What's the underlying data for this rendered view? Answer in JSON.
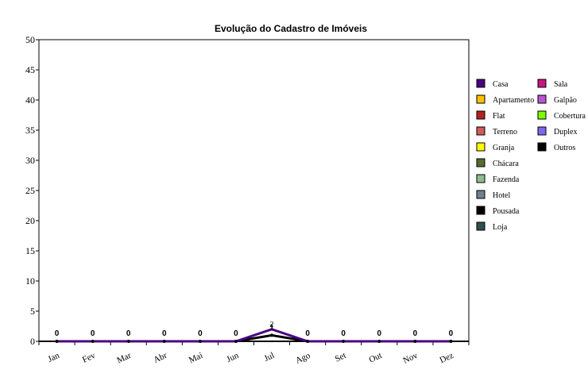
{
  "chart_data": {
    "type": "line",
    "title": "Evolução do Cadastro de Imóveis",
    "xlabel": "",
    "ylabel": "",
    "categories": [
      "Jan",
      "Fev",
      "Mar",
      "Abr",
      "Mai",
      "Jun",
      "Jul",
      "Ago",
      "Set",
      "Out",
      "Nov",
      "Dez"
    ],
    "ylim": [
      0,
      50
    ],
    "yticks": [
      0,
      5,
      10,
      15,
      20,
      25,
      30,
      35,
      40,
      45,
      50
    ],
    "grid": false,
    "legend_position": "right",
    "series": [
      {
        "name": "Casa",
        "color": "#4B0082",
        "values": [
          0,
          0,
          0,
          0,
          0,
          0,
          2,
          0,
          0,
          0,
          0,
          0
        ]
      },
      {
        "name": "Apartamento",
        "color": "#FFC000",
        "values": [
          0,
          0,
          0,
          0,
          0,
          0,
          0,
          0,
          0,
          0,
          0,
          0
        ]
      },
      {
        "name": "Flat",
        "color": "#B22222",
        "values": [
          0,
          0,
          0,
          0,
          0,
          0,
          0,
          0,
          0,
          0,
          0,
          0
        ]
      },
      {
        "name": "Terreno",
        "color": "#CD5C5C",
        "values": [
          0,
          0,
          0,
          0,
          0,
          0,
          0,
          0,
          0,
          0,
          0,
          0
        ]
      },
      {
        "name": "Granja",
        "color": "#FFFF00",
        "values": [
          0,
          0,
          0,
          0,
          0,
          0,
          0,
          0,
          0,
          0,
          0,
          0
        ]
      },
      {
        "name": "Chácara",
        "color": "#556B2F",
        "values": [
          0,
          0,
          0,
          0,
          0,
          0,
          0,
          0,
          0,
          0,
          0,
          0
        ]
      },
      {
        "name": "Fazenda",
        "color": "#8FBC8F",
        "values": [
          0,
          0,
          0,
          0,
          0,
          0,
          0,
          0,
          0,
          0,
          0,
          0
        ]
      },
      {
        "name": "Hotel",
        "color": "#708090",
        "values": [
          0,
          0,
          0,
          0,
          0,
          0,
          0,
          0,
          0,
          0,
          0,
          0
        ]
      },
      {
        "name": "Pousada",
        "color": "#000000",
        "values": [
          0,
          0,
          0,
          0,
          0,
          0,
          1,
          0,
          0,
          0,
          0,
          0
        ]
      },
      {
        "name": "Loja",
        "color": "#2F4F4F",
        "values": [
          0,
          0,
          0,
          0,
          0,
          0,
          0,
          0,
          0,
          0,
          0,
          0
        ]
      },
      {
        "name": "Sala",
        "color": "#C71585",
        "values": [
          0,
          0,
          0,
          0,
          0,
          0,
          0,
          0,
          0,
          0,
          0,
          0
        ]
      },
      {
        "name": "Galpão",
        "color": "#BA55D3",
        "values": [
          0,
          0,
          0,
          0,
          0,
          0,
          0,
          0,
          0,
          0,
          0,
          0
        ]
      },
      {
        "name": "Cobertura",
        "color": "#7CFC00",
        "values": [
          0,
          0,
          0,
          0,
          0,
          0,
          0,
          0,
          0,
          0,
          0,
          0
        ]
      },
      {
        "name": "Duplex",
        "color": "#7B68EE",
        "values": [
          0,
          0,
          0,
          0,
          0,
          0,
          0,
          0,
          0,
          0,
          0,
          0
        ]
      },
      {
        "name": "Outros",
        "color": "#000000",
        "values": [
          0,
          0,
          0,
          0,
          0,
          0,
          0,
          0,
          0,
          0,
          0,
          0
        ]
      }
    ],
    "data_labels": [
      {
        "series": "Pousada",
        "values": [
          0,
          0,
          0,
          0,
          0,
          0,
          1,
          0,
          0,
          0,
          0,
          0
        ]
      },
      {
        "series": "Casa",
        "index": 6,
        "value": 2
      }
    ]
  }
}
